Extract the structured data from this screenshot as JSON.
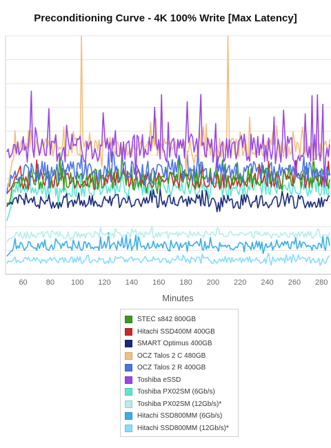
{
  "chart_data": {
    "type": "line",
    "title": "Preconditioning Curve - 4K 100% Write [Max Latency]",
    "xlabel": "Minutes",
    "ylabel": "",
    "xlim": [
      47,
      287
    ],
    "ylim": [
      0,
      10
    ],
    "x_ticks": [
      60,
      80,
      100,
      120,
      140,
      160,
      180,
      200,
      220,
      240,
      260,
      280
    ],
    "grid": true,
    "legend_position": "bottom",
    "x_start": 48,
    "x_end": 286,
    "x_step": 1,
    "series": [
      {
        "name": "STEC s842 800GB",
        "color": "#3a9a1e",
        "base": 4.0,
        "noise": 0.45,
        "spike": 0.8,
        "seed": 11,
        "start": 2.8
      },
      {
        "name": "Hitachi SSD400M 400GB",
        "color": "#c62a2a",
        "base": 3.95,
        "noise": 0.4,
        "spike": 0.7,
        "seed": 23,
        "start": 3.2
      },
      {
        "name": "SMART Optimus 400GB",
        "color": "#1a2a7a",
        "base": 3.05,
        "noise": 0.3,
        "spike": 0.5,
        "seed": 37,
        "start": 2.8
      },
      {
        "name": "OCZ Talos 2 C 480GB",
        "color": "#f0c080",
        "base": 5.3,
        "noise": 0.4,
        "spike": 1.2,
        "seed": 41,
        "start": 3.5,
        "big_spikes": [
          {
            "x": 103,
            "y": 10
          },
          {
            "x": 211,
            "y": 10
          }
        ]
      },
      {
        "name": "OCZ Talos 2 R 400GB",
        "color": "#4a74e0",
        "base": 4.3,
        "noise": 0.45,
        "spike": 0.8,
        "seed": 53,
        "start": 3.6
      },
      {
        "name": "Toshiba eSSD",
        "color": "#9a46e0",
        "base": 5.3,
        "noise": 0.6,
        "spike": 2.0,
        "seed": 67,
        "start": 5.0
      },
      {
        "name": "Toshiba PX02SM (6Gb/s)",
        "color": "#5ee6d2",
        "base": 3.6,
        "noise": 0.35,
        "spike": 0.6,
        "seed": 71,
        "start": 2.4
      },
      {
        "name": "Toshiba PX02SM (12Gb/s)*",
        "color": "#b8ecec",
        "base": 1.65,
        "noise": 0.15,
        "spike": 0.3,
        "seed": 83,
        "start": 1.4
      },
      {
        "name": "Hitachi SSD800MM (6Gb/s)",
        "color": "#3aaee6",
        "base": 1.2,
        "noise": 0.2,
        "spike": 0.4,
        "seed": 97,
        "start": 0.7
      },
      {
        "name": "Hitachi SSD800MM (12Gb/s)*",
        "color": "#88dcfc",
        "base": 0.6,
        "noise": 0.15,
        "spike": 0.25,
        "seed": 101,
        "start": 0.5
      }
    ]
  }
}
